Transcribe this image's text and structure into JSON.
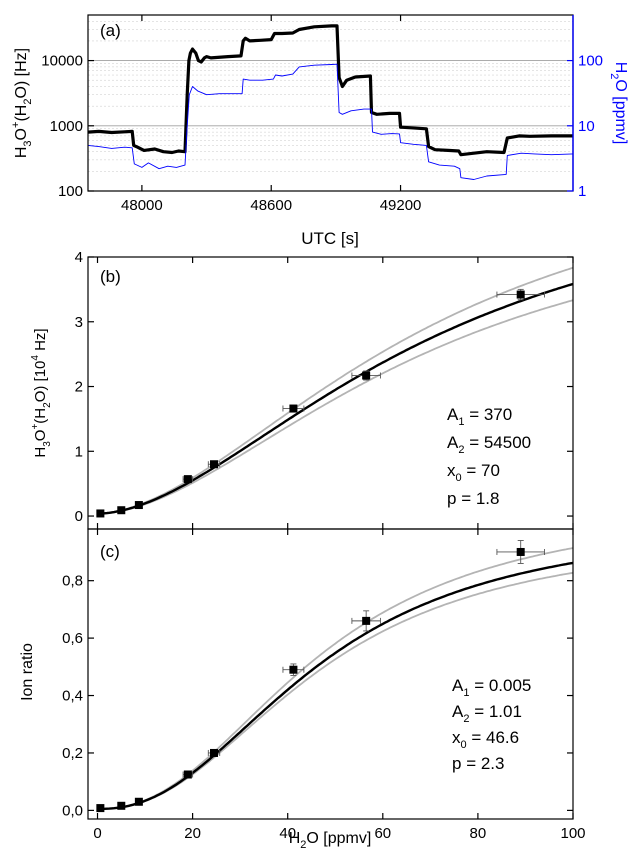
{
  "colors": {
    "main": "#000000",
    "secondary": "#0000ff",
    "fit_band": "#b4b4b4",
    "grid": "#c8c8c8"
  },
  "chart_data": [
    {
      "panel": "(a)",
      "type": "line",
      "xlabel": "UTC [s]",
      "xlim": [
        47750,
        50000
      ],
      "x_ticks": [
        "48000",
        "48600",
        "49200"
      ],
      "x_tick_values": [
        48000,
        48600,
        49200
      ],
      "y_scale": "log",
      "ylim": [
        100,
        50000
      ],
      "y_ticks": [
        "100",
        "1000",
        "10000"
      ],
      "y_tick_values": [
        100,
        1000,
        10000
      ],
      "ylabel": {
        "base1": "H",
        "sub1": "3",
        "mid": "O",
        "sup": "+",
        "paren": "(H",
        "sub2": "2",
        "end": "O) [Hz]"
      },
      "y2_scale": "log",
      "y2lim": [
        1,
        500
      ],
      "y2_ticks": [
        "1",
        "10",
        "100"
      ],
      "y2_tick_values": [
        1,
        10,
        100
      ],
      "y2label": {
        "base": "H",
        "sub": "2",
        "end": "O [ppmv]"
      },
      "grid": true,
      "series": [
        {
          "axis": "left",
          "color": "#000000",
          "points": [
            [
              47750,
              800
            ],
            [
              47800,
              820
            ],
            [
              47860,
              790
            ],
            [
              47920,
              810
            ],
            [
              47955,
              820
            ],
            [
              47962,
              500
            ],
            [
              47980,
              470
            ],
            [
              48010,
              420
            ],
            [
              48060,
              440
            ],
            [
              48100,
              400
            ],
            [
              48140,
              390
            ],
            [
              48170,
              410
            ],
            [
              48200,
              400
            ],
            [
              48210,
              3000
            ],
            [
              48218,
              10000
            ],
            [
              48225,
              13000
            ],
            [
              48235,
              15000
            ],
            [
              48250,
              13000
            ],
            [
              48262,
              10000
            ],
            [
              48275,
              9500
            ],
            [
              48290,
              11000
            ],
            [
              48300,
              11500
            ],
            [
              48320,
              11000
            ],
            [
              48400,
              11500
            ],
            [
              48460,
              11800
            ],
            [
              48470,
              20000
            ],
            [
              48480,
              22000
            ],
            [
              48500,
              20000
            ],
            [
              48550,
              20500
            ],
            [
              48600,
              21000
            ],
            [
              48615,
              26000
            ],
            [
              48650,
              26000
            ],
            [
              48700,
              26500
            ],
            [
              48730,
              30000
            ],
            [
              48800,
              33000
            ],
            [
              48880,
              34000
            ],
            [
              48905,
              34000
            ],
            [
              48915,
              5500
            ],
            [
              48930,
              4000
            ],
            [
              48950,
              5000
            ],
            [
              48990,
              5600
            ],
            [
              49060,
              5800
            ],
            [
              49065,
              1600
            ],
            [
              49090,
              1500
            ],
            [
              49150,
              1550
            ],
            [
              49195,
              1550
            ],
            [
              49200,
              950
            ],
            [
              49250,
              930
            ],
            [
              49320,
              900
            ],
            [
              49330,
              480
            ],
            [
              49360,
              430
            ],
            [
              49420,
              420
            ],
            [
              49470,
              410
            ],
            [
              49480,
              360
            ],
            [
              49540,
              380
            ],
            [
              49600,
              400
            ],
            [
              49680,
              390
            ],
            [
              49695,
              650
            ],
            [
              49750,
              700
            ],
            [
              49800,
              690
            ],
            [
              49900,
              700
            ],
            [
              50000,
              700
            ]
          ]
        },
        {
          "axis": "right",
          "color": "#0000ff",
          "points": [
            [
              47750,
              5
            ],
            [
              47800,
              4.8
            ],
            [
              47860,
              4.5
            ],
            [
              47920,
              4.7
            ],
            [
              47955,
              4.6
            ],
            [
              47965,
              2.6
            ],
            [
              48000,
              2.3
            ],
            [
              48030,
              2.7
            ],
            [
              48080,
              2.2
            ],
            [
              48120,
              2.4
            ],
            [
              48160,
              2.3
            ],
            [
              48200,
              2.5
            ],
            [
              48210,
              10
            ],
            [
              48220,
              30
            ],
            [
              48235,
              40
            ],
            [
              48260,
              34
            ],
            [
              48300,
              30
            ],
            [
              48360,
              31
            ],
            [
              48420,
              31
            ],
            [
              48465,
              31
            ],
            [
              48470,
              52
            ],
            [
              48500,
              50
            ],
            [
              48560,
              50
            ],
            [
              48610,
              52
            ],
            [
              48620,
              60
            ],
            [
              48650,
              58
            ],
            [
              48700,
              62
            ],
            [
              48730,
              80
            ],
            [
              48800,
              85
            ],
            [
              48880,
              87
            ],
            [
              48905,
              88
            ],
            [
              48915,
              16
            ],
            [
              48930,
              15
            ],
            [
              48970,
              17
            ],
            [
              49030,
              18
            ],
            [
              49065,
              18
            ],
            [
              49070,
              8
            ],
            [
              49110,
              7.4
            ],
            [
              49160,
              7.6
            ],
            [
              49195,
              7.5
            ],
            [
              49200,
              5.5
            ],
            [
              49260,
              5.2
            ],
            [
              49320,
              5
            ],
            [
              49330,
              2.8
            ],
            [
              49380,
              2.5
            ],
            [
              49450,
              2.4
            ],
            [
              49475,
              2.2
            ],
            [
              49480,
              1.6
            ],
            [
              49540,
              1.5
            ],
            [
              49600,
              1.7
            ],
            [
              49690,
              1.8
            ],
            [
              49695,
              3.5
            ],
            [
              49760,
              3.8
            ],
            [
              49820,
              3.7
            ],
            [
              49900,
              3.6
            ],
            [
              50000,
              3.7
            ]
          ]
        }
      ]
    },
    {
      "panel": "(b)",
      "type": "scatter",
      "xlim": [
        -2,
        100
      ],
      "ylim": [
        -0.2,
        4
      ],
      "y_ticks": [
        "0",
        "1",
        "2",
        "3",
        "4"
      ],
      "y_tick_values": [
        0,
        1,
        2,
        3,
        4
      ],
      "x_ticks": [
        "0",
        "20",
        "40",
        "60",
        "80",
        "100"
      ],
      "x_tick_values": [
        0,
        20,
        40,
        60,
        80,
        100
      ],
      "ylabel": {
        "base1": "H",
        "sub1": "3",
        "mid": "O",
        "sup": "+",
        "paren": "(H",
        "sub2": "2",
        "end": "O) [10",
        "sup2": "4",
        "tail": " Hz]"
      },
      "points": [
        {
          "x": 0.6,
          "y": 0.04,
          "xerr": 0.4,
          "yerr": 0.01
        },
        {
          "x": 5,
          "y": 0.09,
          "xerr": 0.5,
          "yerr": 0.01
        },
        {
          "x": 8.7,
          "y": 0.17,
          "xerr": 0.6,
          "yerr": 0.01
        },
        {
          "x": 19,
          "y": 0.57,
          "xerr": 1,
          "yerr": 0.03
        },
        {
          "x": 24.5,
          "y": 0.8,
          "xerr": 1.2,
          "yerr": 0.04
        },
        {
          "x": 41.2,
          "y": 1.66,
          "xerr": 2.2,
          "yerr": 0.05
        },
        {
          "x": 56.5,
          "y": 2.17,
          "xerr": 3,
          "yerr": 0.07
        },
        {
          "x": 89,
          "y": 3.42,
          "xerr": 5,
          "yerr": 0.08
        }
      ],
      "fit": {
        "A1": 370,
        "A2": 54500,
        "x0": 70,
        "p": 1.8,
        "scale": 10000
      },
      "fit_band": [
        [
          0.93,
          1.07
        ],
        [
          0.97,
          1.04
        ]
      ],
      "params": [
        {
          "base": "A",
          "sub": "1",
          "rest": " = 370"
        },
        {
          "base": "A",
          "sub": "2",
          "rest": " = 54500"
        },
        {
          "base": "x",
          "sub": "0",
          "rest": " = 70"
        },
        {
          "base": "p",
          "sub": "",
          "rest": " = 1.8"
        }
      ]
    },
    {
      "panel": "(c)",
      "type": "scatter",
      "xlabel": {
        "base": "H",
        "sub": "2",
        "end": "O [ppmv]"
      },
      "ylabel": "Ion ratio",
      "xlim": [
        -2,
        100
      ],
      "ylim": [
        -0.03,
        0.98
      ],
      "x_ticks": [
        "0",
        "20",
        "40",
        "60",
        "80",
        "100"
      ],
      "x_tick_values": [
        0,
        20,
        40,
        60,
        80,
        100
      ],
      "y_ticks": [
        "0,0",
        "0,2",
        "0,4",
        "0,6",
        "0,8"
      ],
      "y_tick_values": [
        0,
        0.2,
        0.4,
        0.6,
        0.8
      ],
      "points": [
        {
          "x": 0.6,
          "y": 0.008,
          "xerr": 0.4,
          "yerr": 0.004
        },
        {
          "x": 5,
          "y": 0.016,
          "xerr": 0.5,
          "yerr": 0.004
        },
        {
          "x": 8.7,
          "y": 0.03,
          "xerr": 0.6,
          "yerr": 0.005
        },
        {
          "x": 19,
          "y": 0.125,
          "xerr": 1,
          "yerr": 0.01
        },
        {
          "x": 24.5,
          "y": 0.2,
          "xerr": 1.2,
          "yerr": 0.012
        },
        {
          "x": 41.2,
          "y": 0.49,
          "xerr": 2.2,
          "yerr": 0.02
        },
        {
          "x": 56.5,
          "y": 0.66,
          "xerr": 3,
          "yerr": 0.035
        },
        {
          "x": 89,
          "y": 0.9,
          "xerr": 5,
          "yerr": 0.04
        }
      ],
      "fit": {
        "A1": 0.005,
        "A2": 1.01,
        "x0": 46.6,
        "p": 2.3,
        "scale": 1
      },
      "fit_band": [
        [
          0.96,
          1.06
        ],
        [
          0.97,
          1.03
        ]
      ],
      "params": [
        {
          "base": "A",
          "sub": "1",
          "rest": " = 0.005"
        },
        {
          "base": "A",
          "sub": "2",
          "rest": " = 1.01"
        },
        {
          "base": "x",
          "sub": "0",
          "rest": " = 46.6"
        },
        {
          "base": "p",
          "sub": "",
          "rest": " = 2.3"
        }
      ]
    }
  ]
}
